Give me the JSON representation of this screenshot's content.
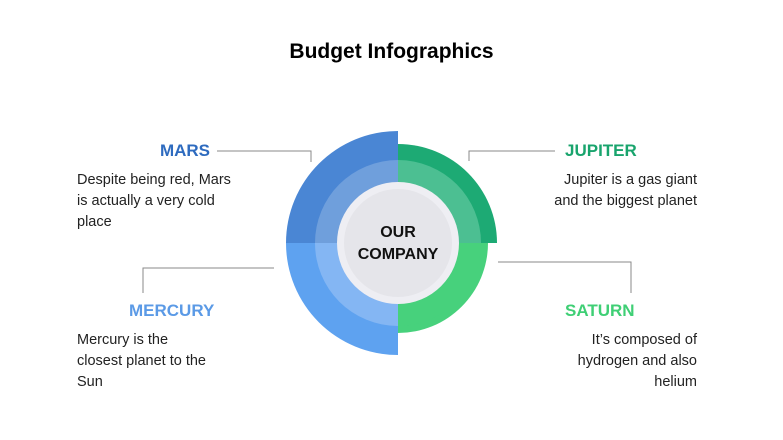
{
  "title": "Budget Infographics",
  "center": {
    "line1": "OUR",
    "line2": "COMPANY"
  },
  "items": [
    {
      "label": "MARS",
      "description": "Despite being red, Mars is actually a very cold place",
      "color": "#2e6bbf"
    },
    {
      "label": "JUPITER",
      "description": "Jupiter is a gas giant and the biggest planet",
      "color": "#19a46d"
    },
    {
      "label": "MERCURY",
      "description": "Mercury is the closest planet to the Sun",
      "color": "#5b9ae6"
    },
    {
      "label": "SATURN",
      "description": "It’s composed of hydrogen and also helium",
      "color": "#3fcf75"
    }
  ],
  "colors": {
    "mars": "#4a86d4",
    "mars_light": "#6f9fdc",
    "jupiter": "#1daa74",
    "jupiter_light": "#4cbf92",
    "saturn": "#47d17c",
    "saturn_light": "#47d17c",
    "mercury": "#5ea2f0",
    "mercury_light": "#84b6f3",
    "center_ring": "#eeeef3",
    "center": "#e5e5ea"
  }
}
